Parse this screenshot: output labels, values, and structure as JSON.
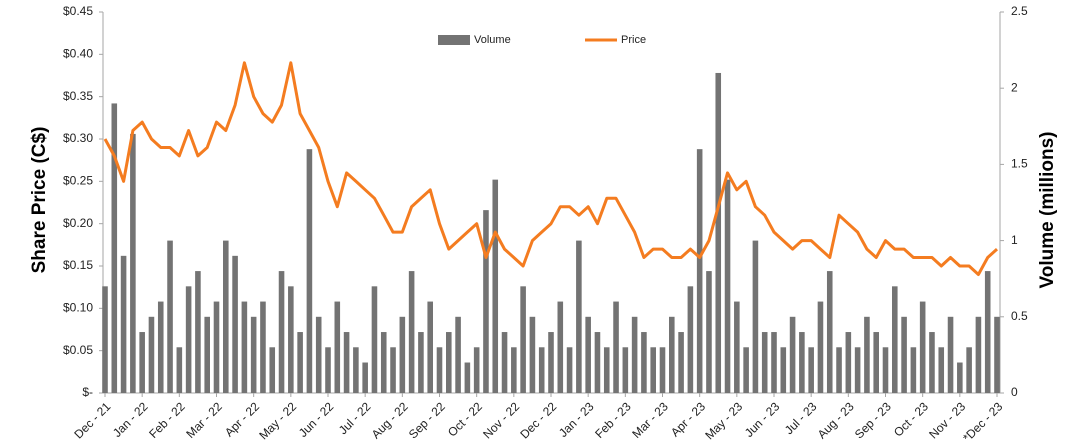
{
  "chart_data": {
    "type": "bar-line",
    "ylabel": "Share Price (C$)",
    "y2label": "Volume (millions)",
    "categories": [
      "Dec - 21",
      null,
      null,
      null,
      "Jan - 22",
      null,
      null,
      null,
      "Feb - 22",
      null,
      null,
      null,
      "Mar - 22",
      null,
      null,
      null,
      "Apr - 22",
      null,
      null,
      null,
      "May - 22",
      null,
      null,
      null,
      "Jun - 22",
      null,
      null,
      null,
      "Jul - 22",
      null,
      null,
      null,
      "Aug - 22",
      null,
      null,
      null,
      "Sep - 22",
      null,
      null,
      null,
      "Oct - 22",
      null,
      null,
      null,
      "Nov - 22",
      null,
      null,
      null,
      "Dec - 22",
      null,
      null,
      null,
      "Jan - 23",
      null,
      null,
      null,
      "Feb - 23",
      null,
      null,
      null,
      "Mar - 23",
      null,
      null,
      null,
      "Apr - 23",
      null,
      null,
      null,
      "May - 23",
      null,
      null,
      null,
      "Jun - 23",
      null,
      null,
      null,
      "Jul - 23",
      null,
      null,
      null,
      "Aug - 23",
      null,
      null,
      null,
      "Sep - 23",
      null,
      null,
      null,
      "Oct - 23",
      null,
      null,
      null,
      "Nov - 23",
      null,
      null,
      null,
      "*Dec - 23"
    ],
    "series": [
      {
        "name": "Volume",
        "color": "#737373",
        "axis": "y2",
        "values": [
          0.7,
          1.9,
          0.9,
          1.7,
          0.4,
          0.5,
          0.6,
          1.0,
          0.3,
          0.7,
          0.8,
          0.5,
          0.6,
          1.0,
          0.9,
          0.6,
          0.5,
          0.6,
          0.3,
          0.8,
          0.7,
          0.4,
          1.6,
          0.5,
          0.3,
          0.6,
          0.4,
          0.3,
          0.2,
          0.7,
          0.4,
          0.3,
          0.5,
          0.8,
          0.4,
          0.6,
          0.3,
          0.4,
          0.5,
          0.2,
          0.3,
          1.2,
          1.4,
          0.4,
          0.3,
          0.7,
          0.5,
          0.3,
          0.4,
          0.6,
          0.3,
          1.0,
          0.5,
          0.4,
          0.3,
          0.6,
          0.3,
          0.5,
          0.4,
          0.3,
          0.3,
          0.5,
          0.4,
          0.7,
          1.6,
          0.8,
          2.1,
          1.4,
          0.6,
          0.3,
          1.0,
          0.4,
          0.4,
          0.3,
          0.5,
          0.4,
          0.3,
          0.6,
          0.8,
          0.3,
          0.4,
          0.3,
          0.5,
          0.4,
          0.3,
          0.7,
          0.5,
          0.3,
          0.6,
          0.4,
          0.3,
          0.5,
          0.2,
          0.3,
          0.5,
          0.8,
          0.5
        ]
      },
      {
        "name": "Price",
        "color": "#f47c20",
        "values": [
          0.3,
          0.28,
          0.25,
          0.31,
          0.32,
          0.3,
          0.29,
          0.29,
          0.28,
          0.31,
          0.28,
          0.29,
          0.32,
          0.31,
          0.34,
          0.39,
          0.35,
          0.33,
          0.32,
          0.34,
          0.39,
          0.33,
          0.31,
          0.29,
          0.25,
          0.22,
          0.26,
          0.25,
          0.24,
          0.23,
          0.21,
          0.19,
          0.19,
          0.22,
          0.23,
          0.24,
          0.2,
          0.17,
          0.18,
          0.19,
          0.2,
          0.16,
          0.19,
          0.17,
          0.16,
          0.15,
          0.18,
          0.19,
          0.2,
          0.22,
          0.22,
          0.21,
          0.22,
          0.2,
          0.23,
          0.23,
          0.21,
          0.19,
          0.16,
          0.17,
          0.17,
          0.16,
          0.16,
          0.17,
          0.16,
          0.18,
          0.22,
          0.26,
          0.24,
          0.25,
          0.22,
          0.21,
          0.19,
          0.18,
          0.17,
          0.18,
          0.18,
          0.17,
          0.16,
          0.21,
          0.2,
          0.19,
          0.17,
          0.16,
          0.18,
          0.17,
          0.17,
          0.16,
          0.16,
          0.16,
          0.15,
          0.16,
          0.15,
          0.15,
          0.14,
          0.16,
          0.17
        ]
      }
    ],
    "ylim": [
      0,
      0.45
    ],
    "yticks": [
      {
        "value": 0,
        "label": "$-"
      },
      {
        "value": 0.05,
        "label": "$0.05"
      },
      {
        "value": 0.1,
        "label": "$0.10"
      },
      {
        "value": 0.15,
        "label": "$0.15"
      },
      {
        "value": 0.2,
        "label": "$0.20"
      },
      {
        "value": 0.25,
        "label": "$0.25"
      },
      {
        "value": 0.3,
        "label": "$0.30"
      },
      {
        "value": 0.35,
        "label": "$0.35"
      },
      {
        "value": 0.4,
        "label": "$0.40"
      },
      {
        "value": 0.45,
        "label": "$0.45"
      }
    ],
    "y2lim": [
      0,
      2.5
    ],
    "y2ticks": [
      0,
      0.5,
      1,
      1.5,
      2,
      2.5
    ],
    "legend": "top"
  }
}
